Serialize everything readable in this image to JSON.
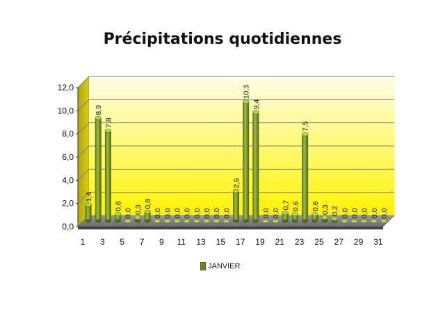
{
  "chart_data": {
    "type": "bar",
    "title": "Précipitations quotidiennes",
    "series": [
      {
        "name": "JANVIER",
        "values": [
          1.4,
          8.9,
          7.8,
          0.6,
          0.0,
          0.3,
          0.8,
          0.0,
          0.0,
          0.0,
          0.0,
          0.0,
          0.0,
          0.0,
          0.0,
          2.6,
          10.3,
          9.4,
          0.0,
          0.0,
          0.7,
          0.6,
          7.5,
          0.6,
          0.3,
          0.2,
          0.0,
          0.0,
          0.0,
          0.0,
          0.0
        ],
        "value_labels": [
          "1,4",
          "8,9",
          "7,8",
          "0,6",
          "0,0",
          "0,3",
          "0,8",
          "0,0",
          "0,0",
          "0,0",
          "0,0",
          "0,0",
          "0,0",
          "0,0",
          "0,0",
          "2,6",
          "10,3",
          "9,4",
          "0,0",
          "0,0",
          "0,7",
          "0,6",
          "7,5",
          "0,6",
          "0,3",
          "0,2",
          "0,0",
          "0,0",
          "0,0",
          "0,0",
          "0,0"
        ]
      }
    ],
    "categories": [
      1,
      2,
      3,
      4,
      5,
      6,
      7,
      8,
      9,
      10,
      11,
      12,
      13,
      14,
      15,
      16,
      17,
      18,
      19,
      20,
      21,
      22,
      23,
      24,
      25,
      26,
      27,
      28,
      29,
      30,
      31
    ],
    "x_tick_labels": [
      "1",
      "3",
      "5",
      "7",
      "9",
      "11",
      "13",
      "15",
      "17",
      "19",
      "21",
      "23",
      "25",
      "27",
      "29",
      "31"
    ],
    "y_ticks": [
      0,
      2,
      4,
      6,
      8,
      10,
      12
    ],
    "y_tick_labels": [
      "0,0",
      "2,0",
      "4,0",
      "6,0",
      "8,0",
      "10,0",
      "12,0"
    ],
    "ylim": [
      0,
      12
    ],
    "grid": true,
    "legend_position": "bottom",
    "colors": {
      "bar": "#6a8a1e",
      "wall_top": "#fffde0",
      "wall_bottom": "#fff000"
    }
  }
}
